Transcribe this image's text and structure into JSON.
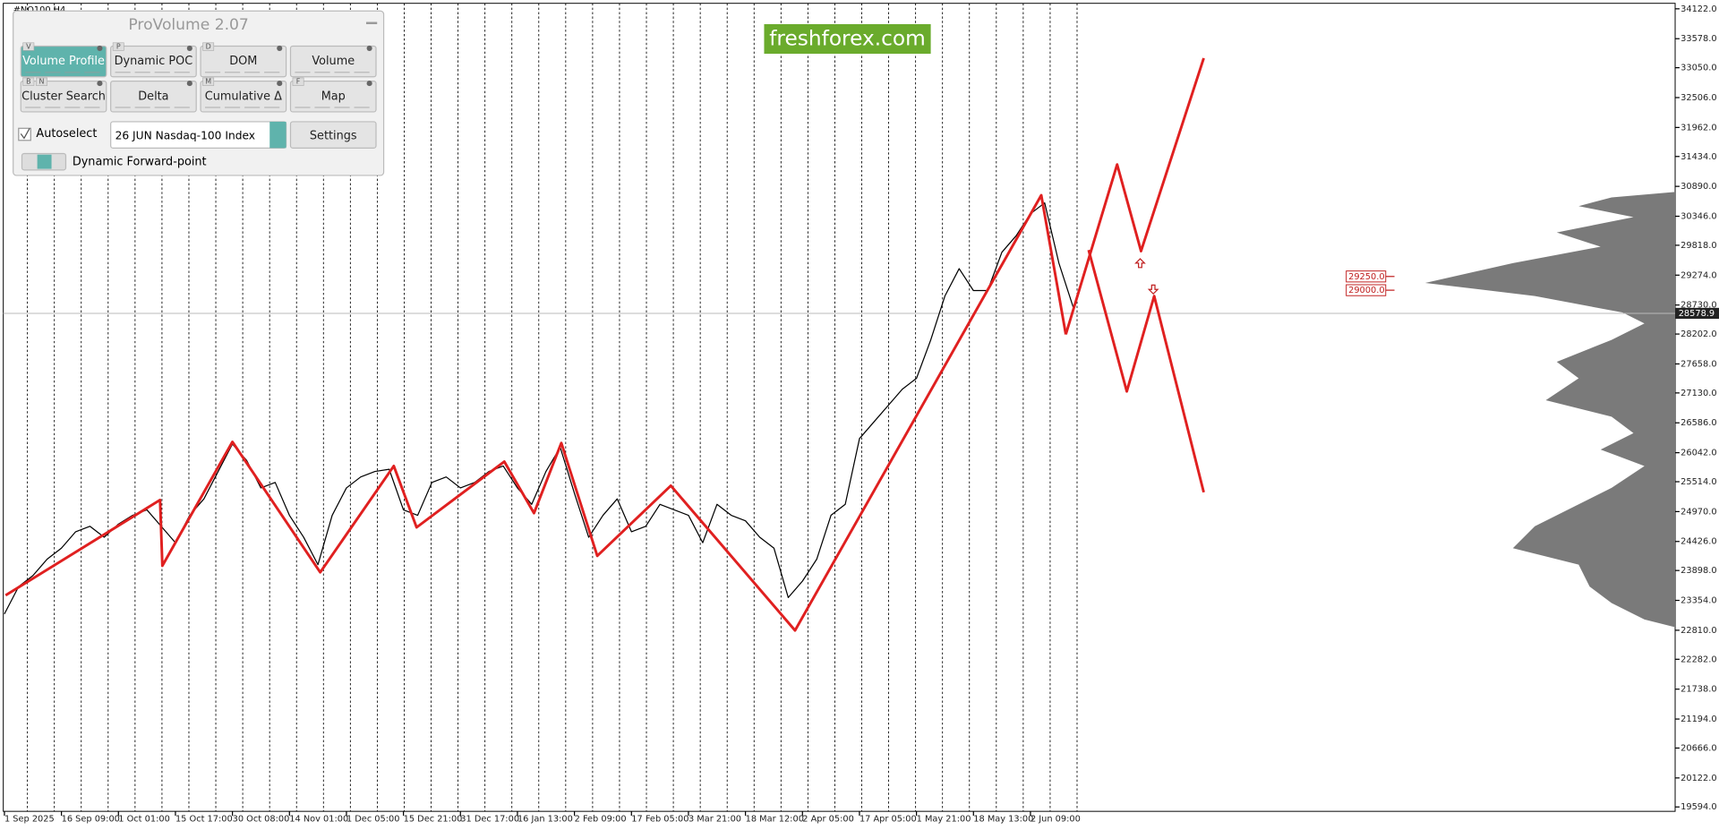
{
  "window": {
    "symbol": "#NQ100,H4"
  },
  "panel": {
    "title": "ProVolume 2.07",
    "buttons": [
      {
        "keys": [
          "V"
        ],
        "label": "Volume Profile",
        "active": true
      },
      {
        "keys": [
          "P"
        ],
        "label": "Dynamic POC",
        "active": false
      },
      {
        "keys": [
          "D"
        ],
        "label": "DOM",
        "active": false
      },
      {
        "keys": [],
        "label": "Volume",
        "active": false
      },
      {
        "keys": [
          "B",
          "N"
        ],
        "label": "Cluster Search",
        "active": false
      },
      {
        "keys": [],
        "label": "Delta",
        "active": false
      },
      {
        "keys": [
          "M"
        ],
        "label": "Cumulative Δ",
        "active": false
      },
      {
        "keys": [
          "F"
        ],
        "label": "Map",
        "active": false
      }
    ],
    "autoselect": "Autoselect",
    "instrument": "26 JUN Nasdaq-100 Index",
    "settings": "Settings",
    "forward_point": "Dynamic Forward-point"
  },
  "watermark": "freshforex.com",
  "chart_data": {
    "type": "line",
    "xlim": [
      -0.02,
      29.31
    ],
    "xticks": [
      {
        "value": 0,
        "label": "1 Sep 2025"
      },
      {
        "value": 1,
        "label": "16 Sep 09:00"
      },
      {
        "value": 2,
        "label": "1 Oct 01:00"
      },
      {
        "value": 3,
        "label": "15 Oct 17:00"
      },
      {
        "value": 4,
        "label": "30 Oct 08:00"
      },
      {
        "value": 5,
        "label": "14 Nov 01:00"
      },
      {
        "value": 6,
        "label": "1 Dec 05:00"
      },
      {
        "value": 7,
        "label": "15 Dec 21:00"
      },
      {
        "value": 8,
        "label": "31 Dec 17:00"
      },
      {
        "value": 9,
        "label": "16 Jan 13:00"
      },
      {
        "value": 10,
        "label": "2 Feb 09:00"
      },
      {
        "value": 11,
        "label": "17 Feb 05:00"
      },
      {
        "value": 12,
        "label": "3 Mar 21:00"
      },
      {
        "value": 13,
        "label": "18 Mar 12:00"
      },
      {
        "value": 14,
        "label": "2 Apr 05:00"
      },
      {
        "value": 15,
        "label": "17 Apr 05:00"
      },
      {
        "value": 16,
        "label": "1 May 21:00"
      },
      {
        "value": 17,
        "label": "18 May 13:00"
      },
      {
        "value": 18,
        "label": "2 Jun 09:00"
      }
    ],
    "ylim": [
      19514,
      34222
    ],
    "yticks": [
      {
        "value": 34122,
        "label": "34122.0"
      },
      {
        "value": 33578,
        "label": "33578.0"
      },
      {
        "value": 33050,
        "label": "33050.0"
      },
      {
        "value": 32506,
        "label": "32506.0"
      },
      {
        "value": 31962,
        "label": "31962.0"
      },
      {
        "value": 31434,
        "label": "31434.0"
      },
      {
        "value": 30890,
        "label": "30890.0"
      },
      {
        "value": 30346,
        "label": "30346.0"
      },
      {
        "value": 29818,
        "label": "29818.0"
      },
      {
        "value": 29274,
        "label": "29274.0"
      },
      {
        "value": 28730,
        "label": "28730.0"
      },
      {
        "value": 28202,
        "label": "28202.0"
      },
      {
        "value": 27658,
        "label": "27658.0"
      },
      {
        "value": 27130,
        "label": "27130.0"
      },
      {
        "value": 26586,
        "label": "26586.0"
      },
      {
        "value": 26042,
        "label": "26042.0"
      },
      {
        "value": 25514,
        "label": "25514.0"
      },
      {
        "value": 24970,
        "label": "24970.0"
      },
      {
        "value": 24426,
        "label": "24426.0"
      },
      {
        "value": 23898,
        "label": "23898.0"
      },
      {
        "value": 23354,
        "label": "23354.0"
      },
      {
        "value": 22810,
        "label": "22810.0"
      },
      {
        "value": 22282,
        "label": "22282.0"
      },
      {
        "value": 21738,
        "label": "21738.0"
      },
      {
        "value": 21194,
        "label": "21194.0"
      },
      {
        "value": 20666,
        "label": "20666.0"
      },
      {
        "value": 20122,
        "label": "20122.0"
      },
      {
        "value": 19594,
        "label": "19594.0"
      }
    ],
    "series": [
      {
        "color": "#000000",
        "width": 1,
        "x": [
          0,
          0.25,
          0.5,
          0.75,
          1,
          1.25,
          1.5,
          1.75,
          2,
          2.25,
          2.5,
          2.75,
          3,
          3.25,
          3.5,
          3.75,
          4,
          4.25,
          4.5,
          4.75,
          5,
          5.25,
          5.5,
          5.75,
          6,
          6.25,
          6.5,
          6.75,
          7,
          7.25,
          7.5,
          7.75,
          8,
          8.25,
          8.5,
          8.75,
          9,
          9.25,
          9.5,
          9.75,
          10,
          10.25,
          10.5,
          10.75,
          11,
          11.25,
          11.5,
          11.75,
          12,
          12.25,
          12.5,
          12.75,
          13,
          13.25,
          13.5,
          13.75,
          14,
          14.25,
          14.5,
          14.75,
          15,
          15.25,
          15.5,
          15.75,
          16,
          16.25,
          16.5,
          16.75,
          17,
          17.25,
          17.5,
          17.75,
          18,
          18.25,
          18.5,
          18.75
        ],
        "values": [
          23106,
          23605,
          23805,
          24104,
          24304,
          24603,
          24703,
          24504,
          24743,
          24903,
          25002,
          24703,
          24404,
          24903,
          25202,
          25701,
          26200,
          25900,
          25401,
          25501,
          24903,
          24504,
          24005,
          24903,
          25401,
          25601,
          25701,
          25741,
          25002,
          24903,
          25501,
          25601,
          25401,
          25501,
          25701,
          25800,
          25401,
          25102,
          25701,
          26140,
          25302,
          24504,
          24903,
          25202,
          24603,
          24703,
          25102,
          25002,
          24903,
          24404,
          25102,
          24903,
          24803,
          24504,
          24304,
          23406,
          23705,
          24104,
          24903,
          25102,
          26300,
          26599,
          26898,
          27198,
          27397,
          28096,
          28894,
          29393,
          28994,
          28994,
          29692,
          29991,
          30391,
          30590,
          29493,
          28694
        ]
      },
      {
        "color": "#e02020",
        "width": 2.4,
        "x": [
          0.02,
          2.73,
          2.77,
          4.0,
          5.54,
          6.83,
          7.23,
          8.77,
          9.29,
          9.77,
          10.4,
          11.69,
          13.87,
          18.19,
          18.62
        ],
        "values": [
          23446,
          25182,
          23984,
          26239,
          23865,
          25800,
          24683,
          25880,
          24942,
          26219,
          24164,
          25441,
          22807,
          30729,
          28195
        ]
      },
      {
        "color": "#e02020",
        "width": 2.4,
        "x": [
          18.62,
          19.52,
          19.94,
          21.04
        ],
        "values": [
          28195,
          31288,
          29712,
          33224
        ]
      },
      {
        "color": "#e02020",
        "width": 2.4,
        "x": [
          19.02,
          19.69,
          20.17,
          21.04
        ],
        "values": [
          29732,
          27157,
          28894,
          25321
        ]
      }
    ],
    "levels": [
      {
        "value": 29250,
        "label": "29250.0"
      },
      {
        "value": 29000,
        "label": "29000.0"
      }
    ],
    "last_price": {
      "value": 28578.9,
      "label": "28578.9"
    },
    "grid": false
  }
}
